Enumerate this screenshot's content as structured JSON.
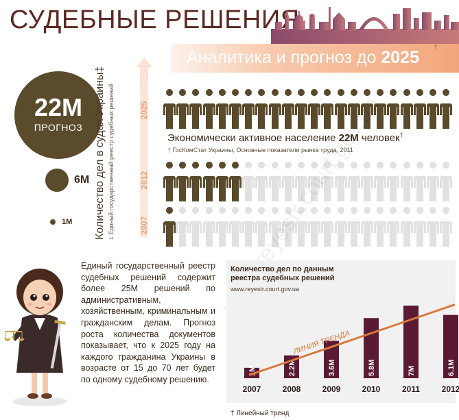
{
  "header": {
    "title": "СУДЕБНЫЕ РЕШЕНИЯ",
    "subtitle_prefix": "Аналитика и прогноз до",
    "subtitle_year": "2025",
    "subtitle_mark": "†"
  },
  "bubbles": {
    "forecast_value": "22M",
    "forecast_label": "ПРОГНОЗ",
    "mid_value": "6M",
    "small_value": "1M"
  },
  "vertical_axis": {
    "title": "Количество дел в судах Украины‡",
    "source": "‡ Единый государственный реестр судебных решений",
    "years": [
      "2025",
      "2012",
      "2007"
    ]
  },
  "people_rows": [
    {
      "year": "2025",
      "filled": 22,
      "total": 22
    },
    {
      "year": "2012",
      "filled": 6,
      "total": 22
    },
    {
      "year": "2007",
      "filled": 1,
      "total": 22
    }
  ],
  "population": {
    "text_prefix": "Экономически активное население",
    "value": "22M",
    "unit": "человек",
    "mark": "†",
    "source": "† ГосКомСтат Украины, Основные показатели рынка труда, 2011"
  },
  "paragraph": "Единый государственный реестр судебных решений содержит более 25М решений по административным, хозяйственным, криминальным и гражданским делам. Прогноз роста количества документов показывает, что к 2025 году на каждого гражданина Украины в возрасте от 15 до 70 лет будет по одному судебному решению.",
  "colors": {
    "brown": "#5a4a2c",
    "dark_bar": "#5b1a33",
    "orange": "#d97a3e",
    "light_person": "#e1e1e1"
  },
  "watermark": "www.reyestr.court.gov.ua",
  "chart_data": {
    "type": "bar",
    "title": "Количество дел по данным реестра судебных решений",
    "subtitle": "www.reyestr.court.gov.ua",
    "categories": [
      "2007",
      "2008",
      "2009",
      "2010",
      "2011",
      "2012"
    ],
    "values": [
      1,
      2.2,
      3.6,
      5.8,
      7,
      6.1
    ],
    "value_labels": [
      "1M",
      "2.2M",
      "3.6M",
      "5.8M",
      "7M",
      "6.1M"
    ],
    "ylim": [
      0,
      7.4
    ],
    "trend_label": "ЛИНИЯ ТРЕНДА",
    "trend_start": 0.3,
    "trend_end": 7.1,
    "footnote": "† Линейный тренд"
  }
}
